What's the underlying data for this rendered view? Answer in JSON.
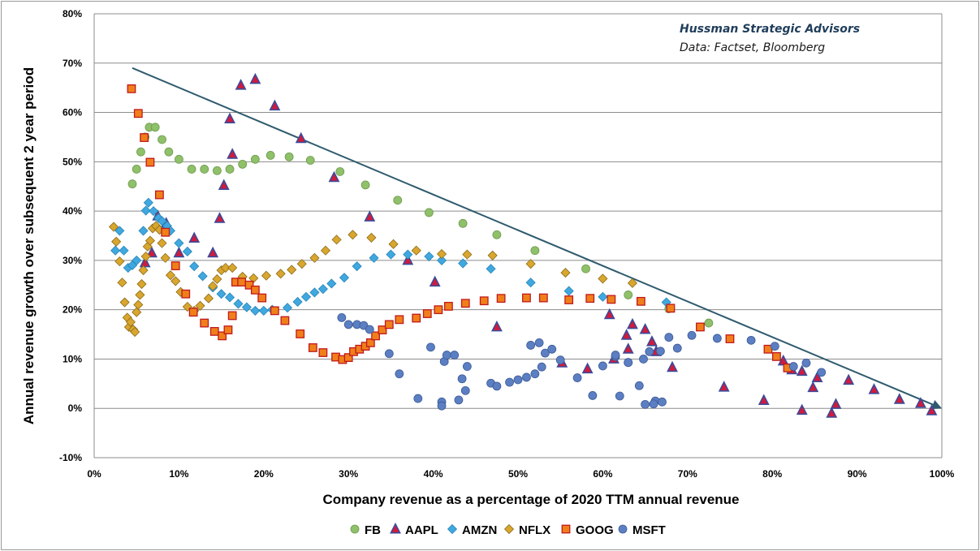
{
  "chart_data": {
    "type": "scatter",
    "title": "",
    "xlabel": "Company revenue as a percentage of 2020 TTM annual revenue",
    "ylabel": "Annual revenue growth over subsequent 2 year period",
    "xlim": [
      0,
      100
    ],
    "ylim": [
      -10,
      80
    ],
    "x_ticks": [
      0,
      10,
      20,
      30,
      40,
      50,
      60,
      70,
      80,
      90,
      100
    ],
    "y_ticks": [
      -10,
      0,
      10,
      20,
      30,
      40,
      50,
      60,
      70,
      80
    ],
    "x_tick_labels": [
      "0%",
      "10%",
      "20%",
      "30%",
      "40%",
      "50%",
      "60%",
      "70%",
      "80%",
      "90%",
      "100%"
    ],
    "y_tick_labels": [
      "-10%",
      "0%",
      "10%",
      "20%",
      "30%",
      "40%",
      "50%",
      "60%",
      "70%",
      "80%"
    ],
    "grid": "horizontal",
    "legend_position": "bottom",
    "annotations": {
      "title": "Hussman Strategic Advisors",
      "source": "Data: Factset, Bloomberg"
    },
    "trend_line": {
      "from": [
        4.5,
        69
      ],
      "to": [
        100,
        0
      ]
    },
    "series": [
      {
        "name": "FB",
        "marker": "circle",
        "color": "#8fc06a",
        "stroke": "#6e9a4d",
        "points": [
          [
            4.5,
            45.5
          ],
          [
            5,
            48.5
          ],
          [
            5.5,
            52
          ],
          [
            6,
            55
          ],
          [
            6.5,
            57
          ],
          [
            7.2,
            57
          ],
          [
            8,
            54.5
          ],
          [
            8.8,
            52
          ],
          [
            10,
            50.5
          ],
          [
            11.5,
            48.5
          ],
          [
            13,
            48.5
          ],
          [
            14.5,
            48.2
          ],
          [
            16,
            48.5
          ],
          [
            17.5,
            49.5
          ],
          [
            19,
            50.5
          ],
          [
            20.8,
            51.3
          ],
          [
            23,
            51
          ],
          [
            25.5,
            50.3
          ],
          [
            29,
            48
          ],
          [
            32,
            45.3
          ],
          [
            35.8,
            42.2
          ],
          [
            39.5,
            39.7
          ],
          [
            43.5,
            37.5
          ],
          [
            47.5,
            35.2
          ],
          [
            52,
            32
          ],
          [
            58,
            28.3
          ],
          [
            63,
            23
          ],
          [
            67.8,
            20.2
          ],
          [
            72.5,
            17.3
          ]
        ]
      },
      {
        "name": "AAPL",
        "marker": "triangle",
        "color": "#d21a3c",
        "stroke": "#3a4b9a",
        "points": [
          [
            6,
            29.5
          ],
          [
            6.8,
            31.5
          ],
          [
            7.5,
            39
          ],
          [
            8.5,
            37.5
          ],
          [
            10,
            31.5
          ],
          [
            11.8,
            34.5
          ],
          [
            14,
            31.5
          ],
          [
            14.8,
            38.5
          ],
          [
            15.3,
            45.2
          ],
          [
            16,
            58.7
          ],
          [
            16.3,
            51.5
          ],
          [
            17.3,
            65.5
          ],
          [
            19,
            66.7
          ],
          [
            21.3,
            61.3
          ],
          [
            24.4,
            54.7
          ],
          [
            28.3,
            46.8
          ],
          [
            32.5,
            38.8
          ],
          [
            37,
            30
          ],
          [
            40.2,
            25.6
          ],
          [
            47.5,
            16.5
          ],
          [
            55.2,
            9.2
          ],
          [
            58.2,
            8
          ],
          [
            61.3,
            10
          ],
          [
            63,
            12
          ],
          [
            63.5,
            17
          ],
          [
            65,
            16
          ],
          [
            65.8,
            13.5
          ],
          [
            66.3,
            11.5
          ],
          [
            68.2,
            8.3
          ],
          [
            74.3,
            4.3
          ],
          [
            79,
            1.6
          ],
          [
            81.3,
            9.6
          ],
          [
            82.3,
            7.8
          ],
          [
            83.5,
            7.5
          ],
          [
            83.5,
            -0.4
          ],
          [
            84.8,
            4.2
          ],
          [
            85.3,
            6.2
          ],
          [
            87,
            -1
          ],
          [
            87.5,
            0.8
          ],
          [
            89,
            5.7
          ],
          [
            92,
            3.8
          ],
          [
            95,
            1.8
          ],
          [
            97.5,
            1
          ],
          [
            98.8,
            -0.5
          ],
          [
            62.8,
            14.8
          ],
          [
            60.8,
            19
          ]
        ]
      },
      {
        "name": "AMZN",
        "marker": "diamond",
        "color": "#3fa8df",
        "stroke": "#2a85b8",
        "points": [
          [
            2.5,
            32
          ],
          [
            3,
            36
          ],
          [
            3.5,
            32
          ],
          [
            4,
            28.5
          ],
          [
            4.5,
            29
          ],
          [
            5,
            30
          ],
          [
            5.8,
            36
          ],
          [
            6.1,
            40.1
          ],
          [
            6.4,
            41.7
          ],
          [
            7,
            40
          ],
          [
            7.6,
            38.6
          ],
          [
            8,
            38
          ],
          [
            8.6,
            37
          ],
          [
            9,
            36
          ],
          [
            10,
            33.5
          ],
          [
            11,
            31.8
          ],
          [
            11.8,
            28.8
          ],
          [
            12.8,
            26.8
          ],
          [
            14,
            24.5
          ],
          [
            15,
            23.2
          ],
          [
            16,
            22.5
          ],
          [
            17,
            21.2
          ],
          [
            18,
            20.5
          ],
          [
            19,
            19.8
          ],
          [
            20,
            19.8
          ],
          [
            21,
            20
          ],
          [
            22.8,
            20.4
          ],
          [
            24,
            21.6
          ],
          [
            25,
            22.6
          ],
          [
            26,
            23.5
          ],
          [
            27,
            24.2
          ],
          [
            28,
            25.3
          ],
          [
            29.5,
            26.5
          ],
          [
            31,
            28.8
          ],
          [
            33,
            30.5
          ],
          [
            35,
            31.2
          ],
          [
            37,
            31.2
          ],
          [
            39.5,
            30.8
          ],
          [
            41,
            30
          ],
          [
            43.5,
            29.4
          ],
          [
            46.8,
            28.3
          ],
          [
            51.5,
            25.5
          ],
          [
            56,
            23.8
          ],
          [
            60,
            22.6
          ],
          [
            67.5,
            21.5
          ]
        ]
      },
      {
        "name": "NFLX",
        "marker": "diamond",
        "color": "#d9a62e",
        "stroke": "#8a6b1a",
        "points": [
          [
            2.3,
            36.8
          ],
          [
            2.6,
            33.8
          ],
          [
            3,
            29.8
          ],
          [
            3.3,
            25.5
          ],
          [
            3.6,
            21.5
          ],
          [
            3.9,
            18.4
          ],
          [
            4.1,
            16.5
          ],
          [
            4.3,
            17.5
          ],
          [
            4.6,
            16
          ],
          [
            4.8,
            15.5
          ],
          [
            5,
            19.5
          ],
          [
            5.2,
            21
          ],
          [
            5.4,
            23
          ],
          [
            5.6,
            25.2
          ],
          [
            5.8,
            28
          ],
          [
            6.1,
            30.8
          ],
          [
            6.3,
            32.8
          ],
          [
            6.6,
            34
          ],
          [
            6.9,
            36.5
          ],
          [
            7.3,
            37
          ],
          [
            7.7,
            36.2
          ],
          [
            8,
            33.5
          ],
          [
            8.4,
            30.5
          ],
          [
            9,
            27
          ],
          [
            9.6,
            25.8
          ],
          [
            10.2,
            23.6
          ],
          [
            11,
            20.6
          ],
          [
            11.8,
            19.8
          ],
          [
            12.5,
            20.8
          ],
          [
            13.5,
            22.3
          ],
          [
            14,
            24.8
          ],
          [
            14.5,
            26.2
          ],
          [
            15,
            28
          ],
          [
            15.5,
            28.5
          ],
          [
            16.3,
            28.5
          ],
          [
            17.5,
            26.7
          ],
          [
            18.8,
            26.4
          ],
          [
            20.3,
            26.9
          ],
          [
            22,
            27.3
          ],
          [
            23.3,
            28.1
          ],
          [
            24.5,
            29.3
          ],
          [
            26,
            30.5
          ],
          [
            27.3,
            32
          ],
          [
            28.6,
            34.2
          ],
          [
            30.5,
            35.2
          ],
          [
            32.7,
            34.6
          ],
          [
            35.3,
            33.3
          ],
          [
            38,
            32
          ],
          [
            41,
            31.3
          ],
          [
            44,
            31.2
          ],
          [
            47,
            31
          ],
          [
            51.5,
            29.3
          ],
          [
            55.6,
            27.5
          ],
          [
            60,
            26.3
          ],
          [
            63.5,
            25.4
          ]
        ]
      },
      {
        "name": "GOOG",
        "marker": "square",
        "color": "#f07f1a",
        "stroke": "#c0191d",
        "points": [
          [
            4.4,
            64.8
          ],
          [
            5.2,
            59.8
          ],
          [
            5.9,
            54.9
          ],
          [
            6.6,
            49.9
          ],
          [
            7.7,
            43.3
          ],
          [
            8.4,
            35.7
          ],
          [
            9.6,
            28.9
          ],
          [
            10.8,
            23.2
          ],
          [
            11.7,
            19.5
          ],
          [
            13,
            17.3
          ],
          [
            14.2,
            15.6
          ],
          [
            15.1,
            14.7
          ],
          [
            15.8,
            15.9
          ],
          [
            16.3,
            18.8
          ],
          [
            16.7,
            25.6
          ],
          [
            17.4,
            25.6
          ],
          [
            18.3,
            25
          ],
          [
            19,
            24
          ],
          [
            19.8,
            22.4
          ],
          [
            21.3,
            19.8
          ],
          [
            22.5,
            17.8
          ],
          [
            24.3,
            15.1
          ],
          [
            25.8,
            12.3
          ],
          [
            27,
            11.3
          ],
          [
            28.5,
            10.4
          ],
          [
            29.3,
            9.9
          ],
          [
            30,
            10.3
          ],
          [
            30.6,
            11.5
          ],
          [
            31.3,
            12
          ],
          [
            32,
            12.6
          ],
          [
            32.6,
            13.3
          ],
          [
            33.2,
            14.7
          ],
          [
            34,
            15.9
          ],
          [
            34.8,
            17
          ],
          [
            36,
            18
          ],
          [
            38,
            18.3
          ],
          [
            39.3,
            19.2
          ],
          [
            40.6,
            20
          ],
          [
            41.8,
            20.7
          ],
          [
            43.8,
            21.3
          ],
          [
            46,
            21.8
          ],
          [
            48,
            22.3
          ],
          [
            51,
            22.4
          ],
          [
            53,
            22.4
          ],
          [
            56,
            22
          ],
          [
            58.5,
            22.3
          ],
          [
            61,
            22.1
          ],
          [
            64.5,
            21.7
          ],
          [
            68,
            20.3
          ],
          [
            71.5,
            16.5
          ],
          [
            75,
            14.1
          ],
          [
            79.5,
            12
          ],
          [
            80.5,
            10.5
          ],
          [
            81.8,
            8.2
          ]
        ]
      },
      {
        "name": "MSFT",
        "marker": "circle",
        "color": "#5b7fc2",
        "stroke": "#3d5a96",
        "points": [
          [
            29.2,
            18.4
          ],
          [
            30,
            17
          ],
          [
            31,
            17
          ],
          [
            31.8,
            16.8
          ],
          [
            32.5,
            16
          ],
          [
            34.8,
            11.1
          ],
          [
            36,
            7
          ],
          [
            38.2,
            2
          ],
          [
            39.7,
            12.4
          ],
          [
            41,
            1.3
          ],
          [
            41.3,
            9.5
          ],
          [
            41.6,
            10.8
          ],
          [
            42.5,
            10.8
          ],
          [
            43,
            1.7
          ],
          [
            43.4,
            6
          ],
          [
            43.8,
            3.6
          ],
          [
            44,
            8.5
          ],
          [
            46.8,
            5.1
          ],
          [
            47.5,
            4.5
          ],
          [
            49,
            5.3
          ],
          [
            50,
            5.8
          ],
          [
            51,
            6.3
          ],
          [
            51.5,
            12.8
          ],
          [
            52,
            7
          ],
          [
            52.8,
            8.4
          ],
          [
            53.2,
            11.2
          ],
          [
            54,
            12
          ],
          [
            55,
            9.8
          ],
          [
            57,
            6.2
          ],
          [
            58.8,
            2.6
          ],
          [
            60,
            8.6
          ],
          [
            61.5,
            10.5
          ],
          [
            62,
            2.5
          ],
          [
            63,
            9.3
          ],
          [
            64.3,
            4.6
          ],
          [
            65,
            0.8
          ],
          [
            65.5,
            11.5
          ],
          [
            66.2,
            1.5
          ],
          [
            66.8,
            11.6
          ],
          [
            67.8,
            14.4
          ],
          [
            68.8,
            12.2
          ],
          [
            70.5,
            14.8
          ],
          [
            73.5,
            14.2
          ],
          [
            77.5,
            13.8
          ],
          [
            80.3,
            12.6
          ],
          [
            82.5,
            8.5
          ],
          [
            84,
            9.2
          ],
          [
            85.8,
            7.3
          ],
          [
            63,
            9.3
          ],
          [
            64.8,
            10
          ],
          [
            66,
            0.9
          ],
          [
            67,
            1.3
          ],
          [
            41,
            0.5
          ],
          [
            52.5,
            13.3
          ],
          [
            61.5,
            10.8
          ]
        ]
      }
    ]
  }
}
